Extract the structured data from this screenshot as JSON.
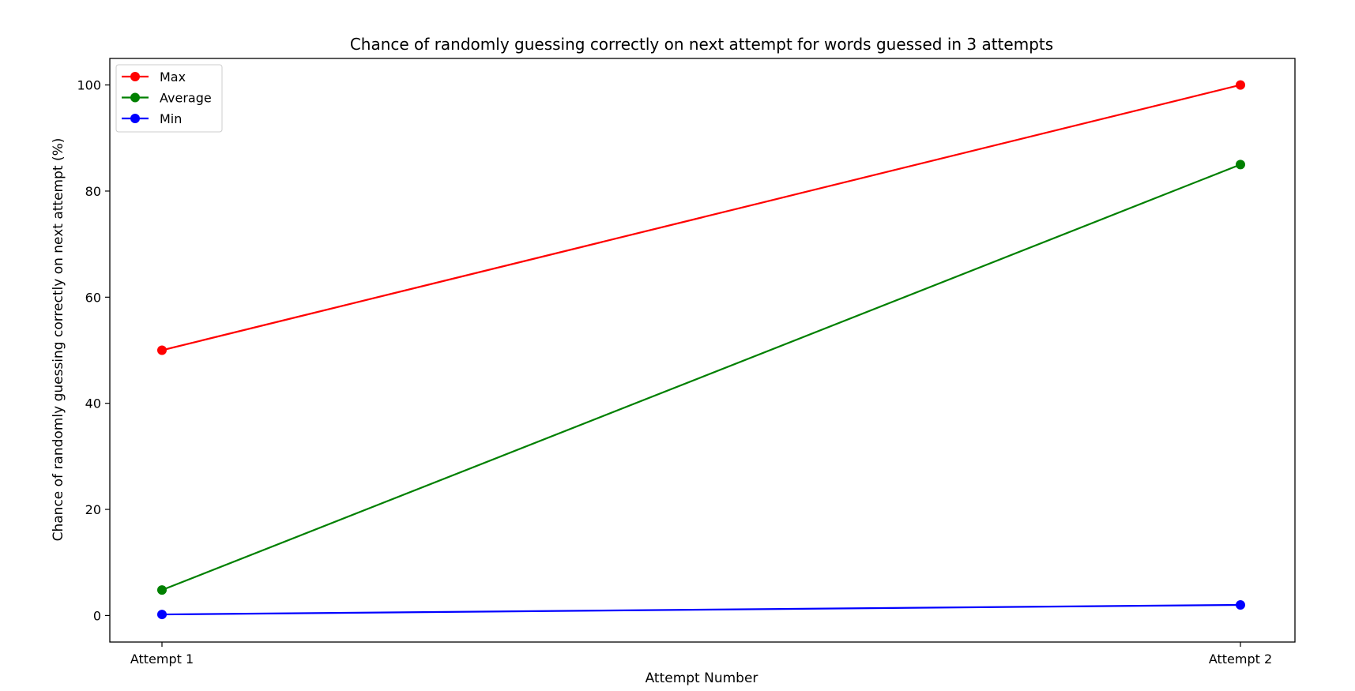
{
  "chart_data": {
    "type": "line",
    "title": "Chance of randomly guessing correctly on next attempt for words guessed in 3 attempts",
    "xlabel": "Attempt Number",
    "ylabel": "Chance of randomly guessing correctly on next attempt (%)",
    "categories": [
      "Attempt 1",
      "Attempt 2"
    ],
    "ylim": [
      -5,
      105
    ],
    "yticks": [
      0,
      20,
      40,
      60,
      80,
      100
    ],
    "grid": false,
    "legend_position": "top-left",
    "series": [
      {
        "name": "Max",
        "color": "#ff0000",
        "values": [
          50,
          100
        ]
      },
      {
        "name": "Average",
        "color": "#008000",
        "values": [
          4.8,
          85
        ]
      },
      {
        "name": "Min",
        "color": "#0000ff",
        "values": [
          0.2,
          2
        ]
      }
    ]
  }
}
